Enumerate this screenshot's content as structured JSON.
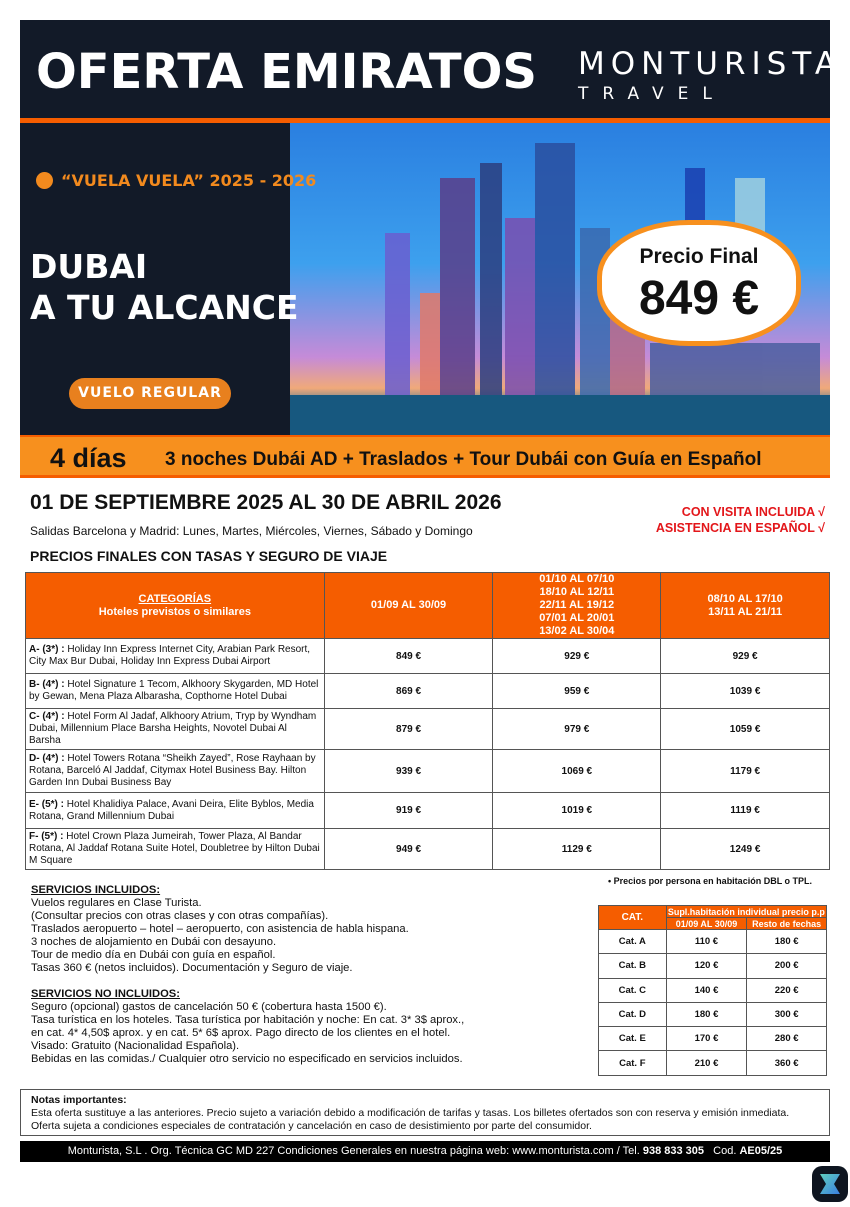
{
  "header": {
    "title": "OFERTA EMIRATOS",
    "logo_line1": "MONTURISTA",
    "logo_line2": "TRAVEL"
  },
  "hero": {
    "campaign": "“VUELA VUELA” 2025 - 2026",
    "headline1": "DUBAI",
    "headline2": "A TU ALCANCE",
    "flight_badge": "VUELO REGULAR",
    "price_label": "Precio Final",
    "price_value": "849 €"
  },
  "banner": {
    "days": "4 días",
    "itinerary": "3 noches Dubái AD + Traslados + Tour Dubái con Guía en Español"
  },
  "intro": {
    "dates": "01 DE SEPTIEMBRE 2025 AL 30 DE ABRIL 2026",
    "departures": "Salidas Barcelona y Madrid: Lunes, Martes, Miércoles, Viernes, Sábado y Domingo",
    "highlight1": "CON VISITA INCLUIDA √",
    "highlight2": "ASISTENCIA EN ESPAÑOL √",
    "prices_title": "PRECIOS FINALES CON TASAS Y SEGURO DE VIAJE"
  },
  "price_table": {
    "header": {
      "cat_title": "CATEGORÍAS",
      "cat_sub": "Hoteles previstos o similares",
      "col1": "01/09 AL 30/09",
      "col2": [
        "01/10 AL 07/10",
        "18/10 AL 12/11",
        "22/11 AL 19/12",
        "07/01 AL 20/01",
        "13/02 AL 30/04"
      ],
      "col3": [
        "08/10 AL 17/10",
        "13/11 AL 21/11"
      ]
    },
    "rows": [
      {
        "cat": "A- (3*) :",
        "hotels": "Holiday Inn Express Internet City, Arabian Park Resort, City Max Bur Dubai, Holiday Inn Express Dubai Airport",
        "p1": "849 €",
        "p2": "929 €",
        "p3": "929 €"
      },
      {
        "cat": "B- (4*) :",
        "hotels": "Hotel Signature 1 Tecom, Alkhoory Skygarden, MD Hotel by Gewan, Mena Plaza Albarasha, Copthorne Hotel Dubai",
        "p1": "869 €",
        "p2": "959 €",
        "p3": "1039 €"
      },
      {
        "cat": "C- (4*) :",
        "hotels": "Hotel Form Al Jadaf, Alkhoory Atrium, Tryp by Wyndham Dubai, Millennium Place Barsha Heights, Novotel Dubai Al Barsha",
        "p1": "879 €",
        "p2": "979 €",
        "p3": "1059 €"
      },
      {
        "cat": "D- (4*) :",
        "hotels": "Hotel Towers Rotana “Sheikh Zayed”, Rose Rayhaan by Rotana, Barceló Al Jaddaf, Citymax Hotel Business Bay. Hilton Garden Inn Dubai Business Bay",
        "p1": "939 €",
        "p2": "1069 €",
        "p3": "1179 €"
      },
      {
        "cat": "E- (5*) :",
        "hotels": "Hotel Khalidiya Palace, Avani Deira, Elite Byblos, Media Rotana, Grand Millennium Dubai",
        "p1": "919 €",
        "p2": "1019 €",
        "p3": "1119 €"
      },
      {
        "cat": "F- (5*) :",
        "hotels": "Hotel Crown Plaza Jumeirah, Tower Plaza, Al Bandar Rotana, Al Jaddaf Rotana Suite Hotel, Doubletree by Hilton Dubai M Square",
        "p1": "949 €",
        "p2": "1129 €",
        "p3": "1249 €"
      }
    ]
  },
  "services": {
    "included_title": "SERVICIOS INCLUIDOS:",
    "included": [
      "Vuelos regulares en Clase Turista.",
      "(Consultar precios con otras clases y con otras compañías).",
      "Traslados aeropuerto – hotel – aeropuerto, con asistencia de habla hispana.",
      "3 noches de alojamiento en Dubái con desayuno.",
      "Tour de medio día en Dubái con guía en español.",
      "Tasas 360 € (netos incluidos). Documentación y Seguro de viaje."
    ],
    "not_included_title": "SERVICIOS NO INCLUIDOS:",
    "not_included": [
      "Seguro (opcional) gastos de cancelación 50 € (cobertura hasta 1500 €).",
      "Tasa turística en los hoteles. Tasa turística por habitación y noche: En cat. 3* 3$ aprox.,",
      "en cat. 4* 4,50$ aprox. y en cat. 5* 6$ aprox. Pago directo de los clientes en el hotel.",
      "Visado: Gratuito (Nacionalidad Española).",
      "Bebidas en las comidas./ Cualquier otro servicio no especificado en servicios incluidos."
    ]
  },
  "price_note": "• Precios por persona en habitación DBL o TPL.",
  "supplement_table": {
    "cat_header": "CAT.",
    "title": "Supl.habitación individual precio p.p",
    "col1": "01/09 AL 30/09",
    "col2": "Resto de fechas",
    "rows": [
      {
        "cat": "Cat. A",
        "p1": "110 €",
        "p2": "180 €"
      },
      {
        "cat": "Cat. B",
        "p1": "120 €",
        "p2": "200 €"
      },
      {
        "cat": "Cat. C",
        "p1": "140 €",
        "p2": "220 €"
      },
      {
        "cat": "Cat. D",
        "p1": "180 €",
        "p2": "300 €"
      },
      {
        "cat": "Cat. E",
        "p1": "170 €",
        "p2": "280 €"
      },
      {
        "cat": "Cat. F",
        "p1": "210 €",
        "p2": "360 €"
      }
    ]
  },
  "notes": {
    "title": "Notas importantes:",
    "line1": "Esta oferta sustituye a las anteriores. Precio sujeto a variación debido a modificación de tarifas y tasas. Los billetes ofertados son con reserva y emisión inmediata.",
    "line2": "Oferta sujeta a condiciones especiales de contratación y cancelación en caso de desistimiento por parte del consumidor."
  },
  "footer": {
    "text": "Monturista, S.L . Org. Técnica GC  MD 227  Condiciones Generales en nuestra página web: www.monturista.com  / Tel. ",
    "phone": "938 833 305",
    "cod_label": "   Cod. ",
    "code": "AE05/25"
  },
  "colors": {
    "dark": "#121a28",
    "orange": "#f55d00",
    "light_orange": "#f7901e",
    "red": "#e3161a"
  }
}
